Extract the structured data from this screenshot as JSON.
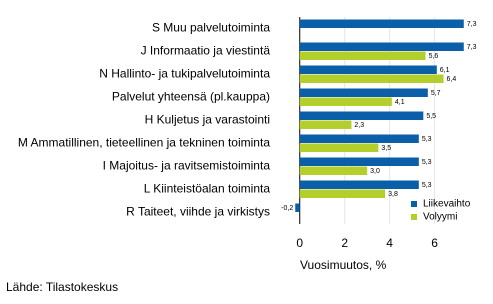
{
  "chart_data": {
    "type": "hbar",
    "categories": [
      "S Muu palvelutoiminta",
      "J Informaatio ja viestintä",
      "N Hallinto- ja tukipalvelutoiminta",
      "Palvelut yhteensä (pl.kauppa)",
      "H Kuljetus ja varastointi",
      "M Ammatillinen, tieteellinen ja tekninen toiminta",
      "I Majoitus- ja ravitsemistoiminta",
      "L Kiinteistöalan toiminta",
      "R Taiteet, viihde ja virkistys"
    ],
    "series": [
      {
        "name": "Liikevaihto",
        "color": "#0b5ea8",
        "values": [
          7.3,
          7.3,
          6.1,
          5.7,
          5.5,
          5.3,
          5.3,
          5.3,
          -0.2
        ],
        "value_labels": [
          "7,3",
          "7,3",
          "6,1",
          "5,7",
          "5,5",
          "5,3",
          "5,3",
          "5,3",
          "-0,2"
        ]
      },
      {
        "name": "Volyymi",
        "color": "#b4cf2c",
        "values": [
          null,
          5.6,
          6.4,
          4.1,
          2.3,
          3.5,
          3.0,
          3.8,
          null
        ],
        "value_labels": [
          null,
          "5,6",
          "6,4",
          "4,1",
          "2,3",
          "3,5",
          "3,0",
          "3,8",
          null
        ]
      }
    ],
    "xlabel": "Vuosimuutos, %",
    "xlim": [
      -0.3,
      7.8
    ],
    "xticks": [
      0,
      2,
      4,
      6
    ],
    "grid": true,
    "legend": "right",
    "source": "Lähde: Tilastokeskus"
  }
}
